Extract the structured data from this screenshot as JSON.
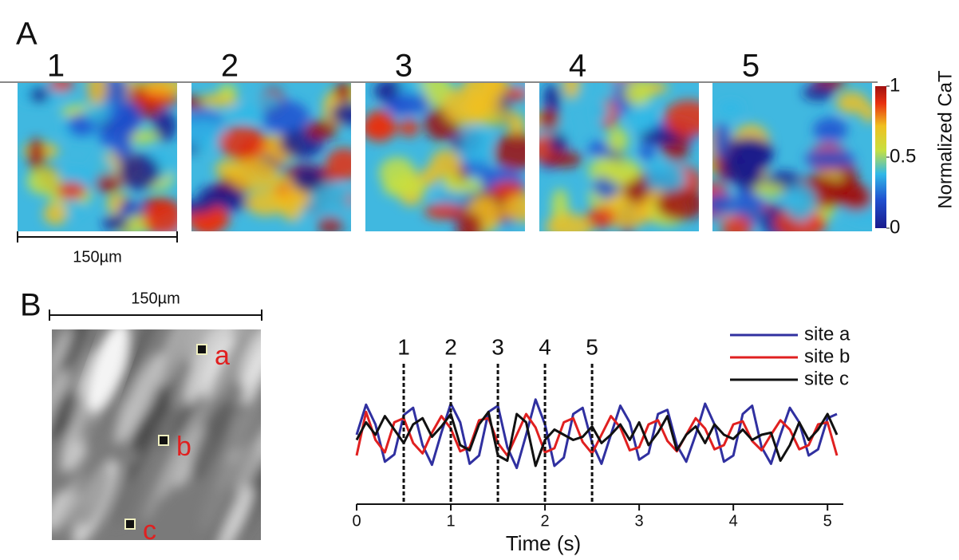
{
  "panel_a": {
    "label": "A",
    "frames": [
      "1",
      "2",
      "3",
      "4",
      "5"
    ],
    "scale_bar": "150µm",
    "colorbar": {
      "label": "Normalized CaT",
      "lim": [
        0,
        1
      ],
      "ticks": [
        0,
        0.5,
        1
      ]
    }
  },
  "panel_b": {
    "label": "B",
    "scale_bar": "150µm",
    "sites": [
      "a",
      "b",
      "c"
    ]
  },
  "chart_data": {
    "type": "line",
    "xlabel": "Time (s)",
    "x": [
      0,
      0.1,
      0.2,
      0.3,
      0.4,
      0.5,
      0.6,
      0.7,
      0.8,
      0.9,
      1,
      1.1,
      1.2,
      1.3,
      1.4,
      1.5,
      1.6,
      1.7,
      1.8,
      1.9,
      2,
      2.1,
      2.2,
      2.3,
      2.4,
      2.5,
      2.6,
      2.7,
      2.8,
      2.9,
      3,
      3.1,
      3.2,
      3.3,
      3.4,
      3.5,
      3.6,
      3.7,
      3.8,
      3.9,
      4,
      4.1,
      4.2,
      4.3,
      4.4,
      4.5,
      4.6,
      4.7,
      4.8,
      4.9,
      5,
      5.1
    ],
    "xlim": [
      0,
      5.1
    ],
    "xticks": [
      0,
      1,
      2,
      3,
      4,
      5
    ],
    "ylim": [
      0,
      1
    ],
    "markers": [
      {
        "x": 0.5,
        "label": "1"
      },
      {
        "x": 1,
        "label": "2"
      },
      {
        "x": 1.5,
        "label": "3"
      },
      {
        "x": 2,
        "label": "4"
      },
      {
        "x": 2.5,
        "label": "5"
      }
    ],
    "series": [
      {
        "name": "site a",
        "color": "#3030a0",
        "values": [
          0.5,
          0.79,
          0.6,
          0.24,
          0.31,
          0.69,
          0.76,
          0.4,
          0.21,
          0.52,
          0.8,
          0.62,
          0.22,
          0.3,
          0.72,
          0.78,
          0.38,
          0.18,
          0.5,
          0.84,
          0.6,
          0.2,
          0.28,
          0.7,
          0.76,
          0.42,
          0.22,
          0.5,
          0.78,
          0.62,
          0.26,
          0.32,
          0.7,
          0.74,
          0.4,
          0.24,
          0.5,
          0.8,
          0.6,
          0.24,
          0.3,
          0.7,
          0.78,
          0.38,
          0.22,
          0.5,
          0.76,
          0.62,
          0.3,
          0.36,
          0.66,
          0.7
        ]
      },
      {
        "name": "site b",
        "color": "#e02020",
        "values": [
          0.3,
          0.72,
          0.45,
          0.33,
          0.62,
          0.66,
          0.42,
          0.32,
          0.52,
          0.68,
          0.56,
          0.34,
          0.38,
          0.64,
          0.66,
          0.42,
          0.3,
          0.5,
          0.7,
          0.57,
          0.33,
          0.37,
          0.62,
          0.66,
          0.43,
          0.32,
          0.5,
          0.68,
          0.57,
          0.35,
          0.38,
          0.6,
          0.64,
          0.44,
          0.34,
          0.5,
          0.66,
          0.56,
          0.36,
          0.4,
          0.6,
          0.63,
          0.44,
          0.35,
          0.5,
          0.64,
          0.55,
          0.36,
          0.4,
          0.6,
          0.62,
          0.3
        ]
      },
      {
        "name": "site c",
        "color": "#111111",
        "values": [
          0.45,
          0.62,
          0.5,
          0.68,
          0.55,
          0.42,
          0.6,
          0.66,
          0.48,
          0.58,
          0.7,
          0.4,
          0.35,
          0.6,
          0.72,
          0.3,
          0.25,
          0.7,
          0.62,
          0.2,
          0.45,
          0.55,
          0.5,
          0.45,
          0.48,
          0.58,
          0.42,
          0.5,
          0.6,
          0.45,
          0.62,
          0.4,
          0.52,
          0.68,
          0.35,
          0.5,
          0.58,
          0.42,
          0.6,
          0.5,
          0.46,
          0.55,
          0.45,
          0.5,
          0.52,
          0.25,
          0.4,
          0.62,
          0.45,
          0.55,
          0.7,
          0.5
        ]
      }
    ]
  }
}
